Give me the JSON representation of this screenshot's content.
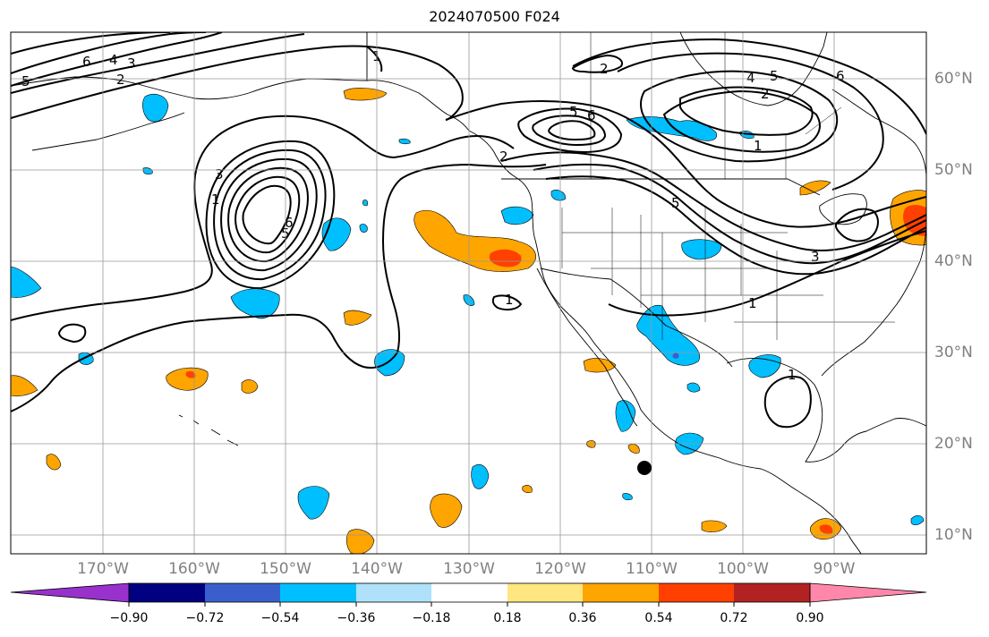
{
  "title": "2024070500 F024",
  "map": {
    "longitude_labels": [
      "170°W",
      "160°W",
      "150°W",
      "140°W",
      "130°W",
      "120°W",
      "110°W",
      "100°W",
      "90°W"
    ],
    "latitude_labels": [
      "60°N",
      "50°N",
      "40°N",
      "30°N",
      "20°N",
      "10°N"
    ],
    "contour_labels": [
      "1",
      "2",
      "3",
      "4",
      "5",
      "6"
    ]
  },
  "colorbar": {
    "tick_labels": [
      "−0.90",
      "−0.72",
      "−0.54",
      "−0.36",
      "−0.18",
      "0.18",
      "0.36",
      "0.54",
      "0.72",
      "0.90"
    ],
    "colors": [
      "#9932cc",
      "#000080",
      "#3a5fcd",
      "#00bfff",
      "#afe1fa",
      "#ffffff",
      "#ffe680",
      "#ffa500",
      "#ff4000",
      "#b22222",
      "#ff88aa"
    ]
  },
  "fill_colors": {
    "negative_light": "#00bfff",
    "positive_light": "#ffa500",
    "positive_strong": "#ff4000",
    "negative_strong": "#3a5fcd"
  }
}
